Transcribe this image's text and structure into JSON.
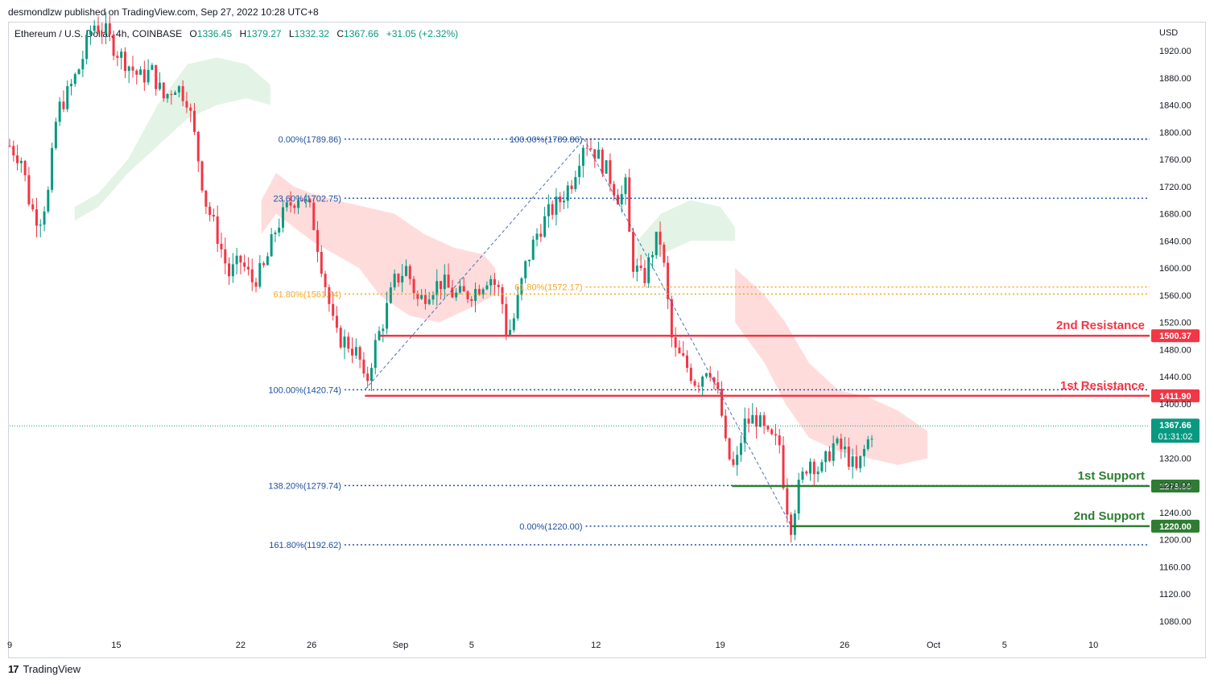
{
  "header": {
    "published": "desmondlzw published on TradingView.com, Sep 27, 2022 10:28 UTC+8"
  },
  "legend": {
    "symbol": "Ethereum / U.S. Dollar, 4h, COINBASE",
    "open_label": "O",
    "open": "1336.45",
    "high_label": "H",
    "high": "1379.27",
    "low_label": "L",
    "low": "1332.32",
    "close_label": "C",
    "close": "1367.66",
    "change": "+31.05 (+2.32%)"
  },
  "footer": {
    "brand": "TradingView",
    "logo_text": "17"
  },
  "colors": {
    "up": "#089981",
    "down": "#f23645",
    "fib_blue": "#1e4fa3",
    "fib_orange": "#f5a623",
    "resistance": "#f23645",
    "support": "#2e7d32",
    "cloud_red": "#ffdcdc",
    "cloud_green": "#e3f3e5"
  },
  "chart_data": {
    "type": "candlestick",
    "currency": "USD",
    "yticks": [
      1920,
      1880,
      1840,
      1800,
      1760,
      1720,
      1680,
      1640,
      1600,
      1560,
      1520,
      1480,
      1440,
      1400,
      1320,
      1280,
      1240,
      1200,
      1160,
      1120,
      1080
    ],
    "ylim": [
      1050,
      1960
    ],
    "xticks": [
      {
        "label": "9",
        "t": 0
      },
      {
        "label": "15",
        "t": 36
      },
      {
        "label": "22",
        "t": 78
      },
      {
        "label": "26",
        "t": 102
      },
      {
        "label": "Sep",
        "t": 132
      },
      {
        "label": "5",
        "t": 156
      },
      {
        "label": "12",
        "t": 198
      },
      {
        "label": "19",
        "t": 240
      },
      {
        "label": "26",
        "t": 282
      },
      {
        "label": "Oct",
        "t": 312
      },
      {
        "label": "5",
        "t": 336
      },
      {
        "label": "10",
        "t": 366
      }
    ],
    "price_path": [
      [
        0,
        1780
      ],
      [
        4,
        1760
      ],
      [
        7,
        1690
      ],
      [
        10,
        1670
      ],
      [
        13,
        1710
      ],
      [
        16,
        1830
      ],
      [
        20,
        1860
      ],
      [
        24,
        1900
      ],
      [
        28,
        1960
      ],
      [
        32,
        1950
      ],
      [
        36,
        1920
      ],
      [
        40,
        1900
      ],
      [
        44,
        1880
      ],
      [
        48,
        1890
      ],
      [
        52,
        1850
      ],
      [
        56,
        1870
      ],
      [
        60,
        1850
      ],
      [
        63,
        1780
      ],
      [
        66,
        1700
      ],
      [
        70,
        1650
      ],
      [
        74,
        1590
      ],
      [
        78,
        1610
      ],
      [
        82,
        1580
      ],
      [
        86,
        1600
      ],
      [
        90,
        1660
      ],
      [
        94,
        1690
      ],
      [
        98,
        1710
      ],
      [
        102,
        1680
      ],
      [
        106,
        1590
      ],
      [
        110,
        1500
      ],
      [
        114,
        1490
      ],
      [
        118,
        1470
      ],
      [
        120,
        1421
      ],
      [
        123,
        1480
      ],
      [
        126,
        1520
      ],
      [
        130,
        1580
      ],
      [
        134,
        1600
      ],
      [
        138,
        1550
      ],
      [
        142,
        1570
      ],
      [
        146,
        1580
      ],
      [
        150,
        1560
      ],
      [
        154,
        1560
      ],
      [
        158,
        1570
      ],
      [
        162,
        1590
      ],
      [
        166,
        1560
      ],
      [
        168,
        1500
      ],
      [
        170,
        1520
      ],
      [
        174,
        1600
      ],
      [
        178,
        1650
      ],
      [
        182,
        1680
      ],
      [
        186,
        1700
      ],
      [
        190,
        1730
      ],
      [
        194,
        1789
      ],
      [
        198,
        1770
      ],
      [
        202,
        1740
      ],
      [
        206,
        1700
      ],
      [
        208,
        1720
      ],
      [
        210,
        1610
      ],
      [
        214,
        1580
      ],
      [
        218,
        1640
      ],
      [
        220,
        1640
      ],
      [
        222,
        1560
      ],
      [
        224,
        1480
      ],
      [
        228,
        1460
      ],
      [
        232,
        1430
      ],
      [
        236,
        1460
      ],
      [
        240,
        1400
      ],
      [
        242,
        1330
      ],
      [
        245,
        1300
      ],
      [
        248,
        1370
      ],
      [
        252,
        1380
      ],
      [
        256,
        1350
      ],
      [
        260,
        1340
      ],
      [
        262,
        1260
      ],
      [
        264,
        1220
      ],
      [
        266,
        1270
      ],
      [
        270,
        1320
      ],
      [
        274,
        1300
      ],
      [
        278,
        1340
      ],
      [
        282,
        1330
      ],
      [
        286,
        1300
      ],
      [
        289,
        1336
      ],
      [
        292,
        1368
      ]
    ],
    "last_t": 292,
    "cloud_red_upper": [
      [
        85,
        1700
      ],
      [
        90,
        1740
      ],
      [
        96,
        1720
      ],
      [
        102,
        1710
      ],
      [
        110,
        1700
      ],
      [
        120,
        1690
      ],
      [
        130,
        1680
      ],
      [
        140,
        1650
      ],
      [
        150,
        1630
      ],
      [
        160,
        1620
      ],
      [
        164,
        1600
      ]
    ],
    "cloud_red_lower": [
      [
        164,
        1560
      ],
      [
        155,
        1540
      ],
      [
        145,
        1520
      ],
      [
        135,
        1530
      ],
      [
        125,
        1560
      ],
      [
        118,
        1600
      ],
      [
        110,
        1620
      ],
      [
        102,
        1640
      ],
      [
        96,
        1660
      ],
      [
        90,
        1680
      ],
      [
        85,
        1650
      ]
    ],
    "cloud_green_upper": [
      [
        22,
        1690
      ],
      [
        30,
        1710
      ],
      [
        40,
        1760
      ],
      [
        50,
        1840
      ],
      [
        60,
        1900
      ],
      [
        70,
        1910
      ],
      [
        80,
        1900
      ],
      [
        88,
        1870
      ]
    ],
    "cloud_green_lower": [
      [
        88,
        1840
      ],
      [
        80,
        1850
      ],
      [
        70,
        1840
      ],
      [
        60,
        1820
      ],
      [
        50,
        1780
      ],
      [
        40,
        1740
      ],
      [
        30,
        1690
      ],
      [
        22,
        1670
      ]
    ],
    "cloud_red2_upper": [
      [
        245,
        1600
      ],
      [
        255,
        1560
      ],
      [
        262,
        1520
      ],
      [
        270,
        1460
      ],
      [
        280,
        1420
      ],
      [
        290,
        1410
      ],
      [
        300,
        1390
      ],
      [
        310,
        1360
      ]
    ],
    "cloud_red2_lower": [
      [
        310,
        1320
      ],
      [
        300,
        1310
      ],
      [
        290,
        1320
      ],
      [
        280,
        1330
      ],
      [
        270,
        1350
      ],
      [
        262,
        1400
      ],
      [
        255,
        1460
      ],
      [
        245,
        1520
      ]
    ],
    "cloud_green2_upper": [
      [
        212,
        1640
      ],
      [
        220,
        1680
      ],
      [
        230,
        1700
      ],
      [
        240,
        1690
      ],
      [
        245,
        1660
      ]
    ],
    "cloud_green2_lower": [
      [
        245,
        1640
      ],
      [
        240,
        1640
      ],
      [
        230,
        1640
      ],
      [
        220,
        1620
      ],
      [
        212,
        1610
      ]
    ],
    "fib_lines": [
      {
        "label": "0.00%(1789.86)",
        "price": 1789.86,
        "color": "blue",
        "label_t": 112
      },
      {
        "label": "23.60%(1702.75)",
        "price": 1702.75,
        "color": "blue",
        "label_t": 112
      },
      {
        "label": "61.80%(1561.74)",
        "price": 1561.74,
        "color": "orange",
        "label_t": 112
      },
      {
        "label": "100.00%(1420.74)",
        "price": 1420.74,
        "color": "blue",
        "label_t": 112
      },
      {
        "label": "138.20%(1279.74)",
        "price": 1279.74,
        "color": "blue",
        "label_t": 112
      },
      {
        "label": "161.80%(1192.62)",
        "price": 1192.62,
        "color": "blue",
        "label_t": 112
      },
      {
        "label": "100.00%(1789.86)",
        "price": 1789.86,
        "color": "blue",
        "label_t": 194,
        "short": true
      },
      {
        "label": "61.80%(1572.17)",
        "price": 1572.17,
        "color": "orange",
        "label_t": 194,
        "short": true
      },
      {
        "label": "0.00%(1220.00)",
        "price": 1220.0,
        "color": "blue",
        "label_t": 194,
        "short": true
      }
    ],
    "levels": [
      {
        "name": "2nd Resistance",
        "price": 1500.37,
        "tag": "1500.37",
        "color": "red",
        "from_t": 125
      },
      {
        "name": "1st Resistance",
        "price": 1411.9,
        "tag": "1411.90",
        "color": "red",
        "from_t": 120
      },
      {
        "name": "1st Support",
        "price": 1279.0,
        "tag": "1279.00",
        "color": "green",
        "from_t": 244
      },
      {
        "name": "2nd Support",
        "price": 1220.0,
        "tag": "1220.00",
        "color": "green",
        "from_t": 264
      }
    ],
    "current": {
      "price": 1367.66,
      "tag": "1367.66",
      "countdown": "01:31:02"
    },
    "trend_lines": [
      [
        [
          120,
          1421
        ],
        [
          194,
          1790
        ]
      ],
      [
        [
          194,
          1790
        ],
        [
          264,
          1220
        ]
      ]
    ]
  }
}
